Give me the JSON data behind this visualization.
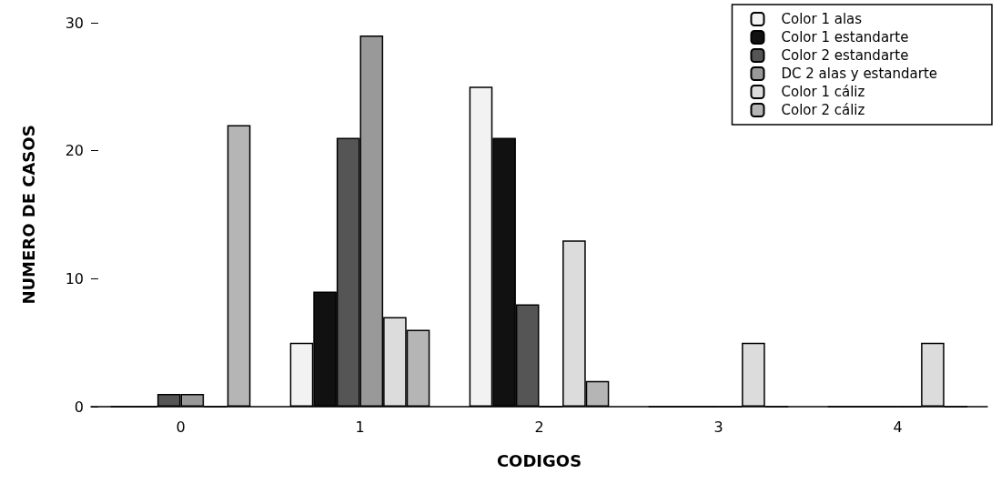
{
  "chart_data": {
    "type": "bar",
    "xlabel": "CODIGOS",
    "ylabel": "NUMERO DE CASOS",
    "categories": [
      "0",
      "1",
      "2",
      "3",
      "4"
    ],
    "series": [
      {
        "name": "Color 1 alas",
        "color": "#f2f2f2",
        "values": [
          0,
          5,
          25,
          0,
          0
        ]
      },
      {
        "name": "Color 1 estandarte",
        "color": "#111111",
        "values": [
          0,
          9,
          21,
          0,
          0
        ]
      },
      {
        "name": "Color 2 estandarte",
        "color": "#555555",
        "values": [
          1,
          21,
          8,
          0,
          0
        ]
      },
      {
        "name": "DC 2 alas y estandarte",
        "color": "#999999",
        "values": [
          1,
          29,
          0,
          0,
          0
        ]
      },
      {
        "name": "Color 1 cáliz",
        "color": "#dcdcdc",
        "values": [
          0,
          7,
          13,
          5,
          5
        ]
      },
      {
        "name": "Color 2 cáliz",
        "color": "#b5b5b5",
        "values": [
          22,
          6,
          2,
          0,
          0
        ]
      }
    ],
    "ylim": [
      0,
      30
    ],
    "yticks": [
      0,
      10,
      20,
      30
    ],
    "grid": false,
    "legend": "top right"
  }
}
